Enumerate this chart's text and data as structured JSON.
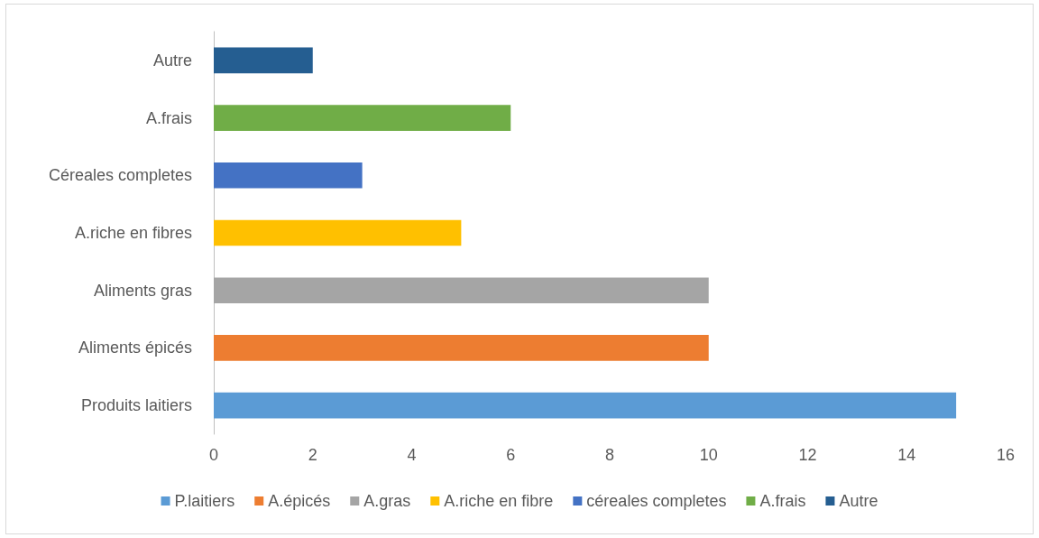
{
  "chart_data": {
    "type": "bar",
    "orientation": "horizontal",
    "stacked": true,
    "categories": [
      "Autre",
      "A.frais",
      "Céreales completes",
      "A.riche en fibres",
      "Aliments gras",
      "Aliments épicés",
      "Produits laitiers"
    ],
    "series": [
      {
        "name": "P.laitiers",
        "color": "#5b9bd5",
        "values": [
          null,
          null,
          null,
          null,
          null,
          null,
          15
        ]
      },
      {
        "name": "A.épicés",
        "color": "#ed7d31",
        "values": [
          null,
          null,
          null,
          null,
          null,
          10,
          null
        ]
      },
      {
        "name": "A.gras",
        "color": "#a5a5a5",
        "values": [
          null,
          null,
          null,
          null,
          10,
          null,
          null
        ]
      },
      {
        "name": "A.riche en fibre",
        "color": "#ffc000",
        "values": [
          null,
          null,
          null,
          5,
          null,
          null,
          null
        ]
      },
      {
        "name": "céreales completes",
        "color": "#4472c4",
        "values": [
          null,
          null,
          3,
          null,
          null,
          null,
          null
        ]
      },
      {
        "name": "A.frais",
        "color": "#70ad47",
        "values": [
          null,
          6,
          null,
          null,
          null,
          null,
          null
        ]
      },
      {
        "name": "Autre",
        "color": "#255e91",
        "values": [
          2,
          null,
          null,
          null,
          null,
          null,
          null
        ]
      }
    ],
    "xlim": [
      0,
      16
    ],
    "xticks": [
      0,
      2,
      4,
      6,
      8,
      10,
      12,
      14,
      16
    ],
    "grid": false,
    "legend": "bottom"
  }
}
